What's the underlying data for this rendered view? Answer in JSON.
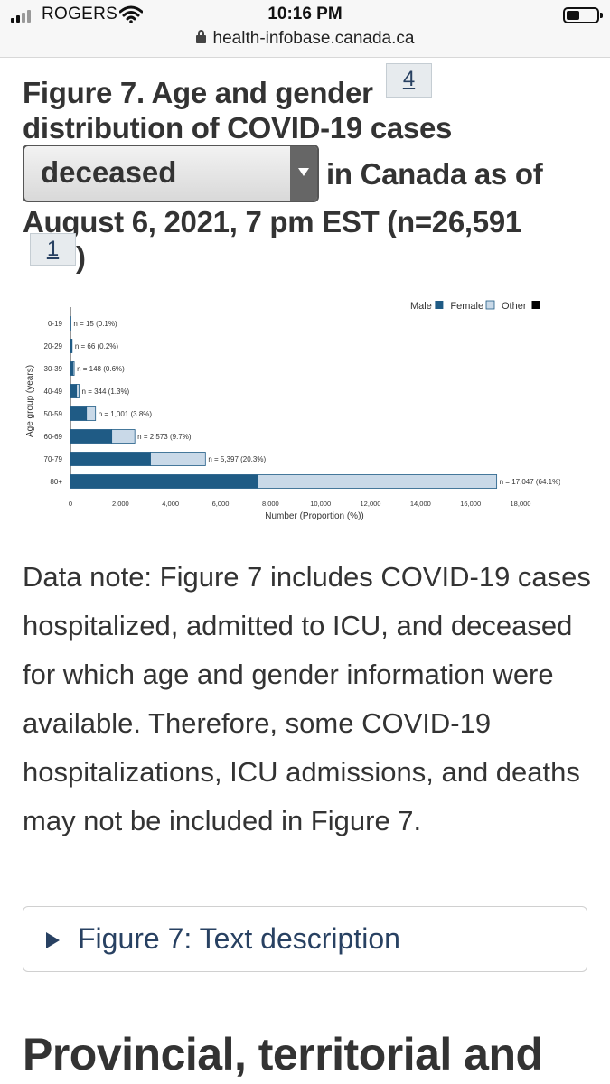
{
  "status_bar": {
    "carrier": "ROGERS",
    "time": "10:16 PM",
    "url": "health-infobase.canada.ca"
  },
  "heading": {
    "line1": "Figure 7. Age and gender",
    "line2": "distribution of COVID-19 cases",
    "after_select": "in Canada as of",
    "line4": "August 6, 2021, 7 pm EST (n=26,591",
    "line5_end": ")",
    "footnote_ref_a": "4",
    "footnote_ref_b": "1",
    "select_value": "deceased"
  },
  "chart_data": {
    "type": "bar",
    "orientation": "horizontal",
    "stacked": true,
    "categories": [
      "0-19",
      "20-29",
      "30-39",
      "40-49",
      "50-59",
      "60-69",
      "70-79",
      "80+"
    ],
    "series": [
      {
        "name": "Male",
        "color": "#1f5b85",
        "values": [
          10,
          45,
          100,
          240,
          640,
          1650,
          3200,
          7500
        ]
      },
      {
        "name": "Female",
        "color": "#c9d9e8",
        "values": [
          5,
          21,
          48,
          104,
          361,
          923,
          2197,
          9547
        ]
      },
      {
        "name": "Other",
        "color": "#000000",
        "values": [
          0,
          0,
          0,
          0,
          0,
          0,
          0,
          0
        ]
      }
    ],
    "bar_labels": [
      "n = 15 (0.1%)",
      "n = 66 (0.2%)",
      "n = 148 (0.6%)",
      "n = 344 (1.3%)",
      "n = 1,001 (3.8%)",
      "n = 2,573 (9.7%)",
      "n = 5,397 (20.3%)",
      "n = 17,047 (64.1%)"
    ],
    "xlabel": "Number (Proportion (%))",
    "ylabel": "Age group (years)",
    "xlim": [
      0,
      18000
    ],
    "x_ticks": [
      0,
      2000,
      4000,
      6000,
      8000,
      10000,
      12000,
      14000,
      16000,
      18000
    ],
    "x_tick_labels": [
      "0",
      "2,000",
      "4,000",
      "6,000",
      "8,000",
      "10,000",
      "12,000",
      "14,000",
      "16,000",
      "18,000"
    ],
    "legend_placement": "top-right",
    "grid": false
  },
  "note": {
    "text": "Data note: Figure 7 includes COVID-19 cases hospitalized, admitted to ICU, and deceased for which age and gender information were available. Therefore, some COVID-19 hospitalizations, ICU admissions, and deaths may not be included in Figure 7."
  },
  "details": {
    "label": "Figure 7: Text description"
  },
  "next_section": {
    "heading": "Provincial, territorial and"
  },
  "colors": {
    "link": "#284162",
    "text": "#333333"
  }
}
